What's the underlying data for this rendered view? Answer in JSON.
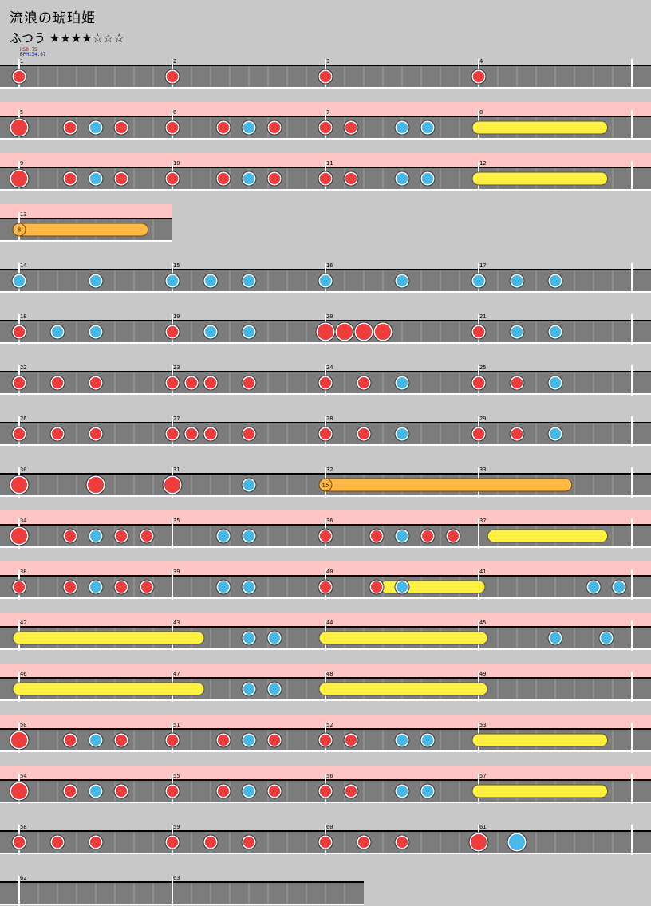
{
  "song": {
    "title": "流浪の琥珀姫",
    "difficulty_label": "ふつう",
    "stars": "★★★★☆☆☆"
  },
  "scroll": {
    "hs": "HS0.75",
    "bpm": "BPM134.67"
  },
  "colors": {
    "bg": "#c8c8c8",
    "lane": "#7c7c7c",
    "gogo": "#ffc4c4",
    "don": "#ee3b3b",
    "ka": "#48b8ec",
    "roll": "#fff040",
    "balloon": "#ffb844"
  },
  "chart_data": {
    "type": "taiko-score",
    "note_legend": {
      "d": "don",
      "k": "ka",
      "D": "big don",
      "K": "big ka"
    },
    "rows": [
      {
        "measures": [
          {
            "n": "1",
            "notes": "d"
          },
          {
            "n": "2",
            "notes": "d"
          },
          {
            "n": "3",
            "notes": "d"
          },
          {
            "n": "4",
            "notes": "d"
          }
        ]
      },
      {
        "gogo": true,
        "measures": [
          {
            "n": "5",
            "notes": "D000d0k0d000"
          },
          {
            "n": "6",
            "notes": "d000d0k0d000"
          },
          {
            "n": "7",
            "notes": "d0d000k0k000"
          },
          {
            "n": "8",
            "notes": "",
            "roll": [
              0,
              9.6
            ]
          }
        ]
      },
      {
        "gogo": true,
        "measures": [
          {
            "n": "9",
            "notes": "D000d0k0d000"
          },
          {
            "n": "10",
            "notes": "d000d0k0d000"
          },
          {
            "n": "11",
            "notes": "d0d000k0k000"
          },
          {
            "n": "12",
            "notes": "",
            "roll": [
              0,
              9.6
            ]
          }
        ]
      },
      {
        "gogo": true,
        "partial": 1,
        "measures": [
          {
            "n": "13",
            "notes": "",
            "balloon": {
              "count": "8",
              "span": [
                0,
                9.6
              ]
            }
          }
        ]
      },
      {
        "measures": [
          {
            "n": "14",
            "notes": "k000k000"
          },
          {
            "n": "15",
            "notes": "k0k0k000"
          },
          {
            "n": "16",
            "notes": "k000k000"
          },
          {
            "n": "17",
            "notes": "k0k0k000"
          }
        ]
      },
      {
        "measures": [
          {
            "n": "18",
            "notes": "d0k0k000"
          },
          {
            "n": "19",
            "notes": "d0k0k000"
          },
          {
            "n": "20",
            "notes": "DDDD0000"
          },
          {
            "n": "21",
            "notes": "d0k0k000"
          }
        ]
      },
      {
        "measures": [
          {
            "n": "22",
            "notes": "d0d0d000"
          },
          {
            "n": "23",
            "notes": "ddd0d000"
          },
          {
            "n": "24",
            "notes": "d0d0k000"
          },
          {
            "n": "25",
            "notes": "d0d0k000"
          }
        ]
      },
      {
        "measures": [
          {
            "n": "26",
            "notes": "d0d0d000"
          },
          {
            "n": "27",
            "notes": "ddd0d000"
          },
          {
            "n": "28",
            "notes": "d0d0k000"
          },
          {
            "n": "29",
            "notes": "d0d0k000"
          }
        ]
      },
      {
        "measures": [
          {
            "n": "30",
            "notes": "D0D0"
          },
          {
            "n": "31",
            "notes": "D0k0"
          },
          {
            "n": "32",
            "notes": "",
            "balloon": {
              "count": "15",
              "span": [
                0,
                18.8
              ]
            }
          },
          {
            "n": "33",
            "notes": ""
          }
        ]
      },
      {
        "gogo": true,
        "measures": [
          {
            "n": "34",
            "notes": "D000d0k0d0d0"
          },
          {
            "n": "35",
            "notes": "0000k0k00000"
          },
          {
            "n": "36",
            "notes": "d000d0k0d0d0",
            "roll": [
              0,
              0
            ]
          },
          {
            "n": "37",
            "notes": "",
            "roll": [
              1.2,
              9.6
            ]
          }
        ]
      },
      {
        "gogo": true,
        "measures": [
          {
            "n": "38",
            "notes": "d000d0k0d0d0"
          },
          {
            "n": "39",
            "notes": "0000k0k00000"
          },
          {
            "n": "40",
            "notes": "d000d0k00000",
            "roll": [
              4.8,
              12.0
            ]
          },
          {
            "n": "41",
            "notes": "000000000k0k"
          }
        ]
      },
      {
        "gogo": true,
        "measures": [
          {
            "n": "42",
            "notes": "",
            "roll": [
              0,
              14.0
            ]
          },
          {
            "n": "43",
            "notes": "000000k0k000"
          },
          {
            "n": "44",
            "notes": "",
            "roll": [
              0,
              12.2
            ]
          },
          {
            "n": "45",
            "notes": "000000k000k0"
          }
        ]
      },
      {
        "gogo": true,
        "measures": [
          {
            "n": "46",
            "notes": "",
            "roll": [
              0,
              14.0
            ]
          },
          {
            "n": "47",
            "notes": "000000k0k000"
          },
          {
            "n": "48",
            "notes": "",
            "roll": [
              0,
              12.2
            ]
          },
          {
            "n": "49",
            "notes": ""
          }
        ]
      },
      {
        "gogo": true,
        "measures": [
          {
            "n": "50",
            "notes": "D000d0k0d000"
          },
          {
            "n": "51",
            "notes": "d000d0k0d000"
          },
          {
            "n": "52",
            "notes": "d0d000k0k000"
          },
          {
            "n": "53",
            "notes": "",
            "roll": [
              0,
              9.6
            ]
          }
        ]
      },
      {
        "gogo": true,
        "measures": [
          {
            "n": "54",
            "notes": "D000d0k0d000"
          },
          {
            "n": "55",
            "notes": "d000d0k0d000"
          },
          {
            "n": "56",
            "notes": "d0d000k0k000"
          },
          {
            "n": "57",
            "notes": "",
            "roll": [
              0,
              9.6
            ]
          }
        ]
      },
      {
        "measures": [
          {
            "n": "58",
            "notes": "d0d0d000"
          },
          {
            "n": "59",
            "notes": "d0d0d000"
          },
          {
            "n": "60",
            "notes": "d0d0d000"
          },
          {
            "n": "61",
            "notes": "D0K00000"
          }
        ]
      },
      {
        "partial": 2.25,
        "measures": [
          {
            "n": "62",
            "notes": ""
          },
          {
            "n": "63",
            "notes": ""
          }
        ]
      }
    ]
  }
}
